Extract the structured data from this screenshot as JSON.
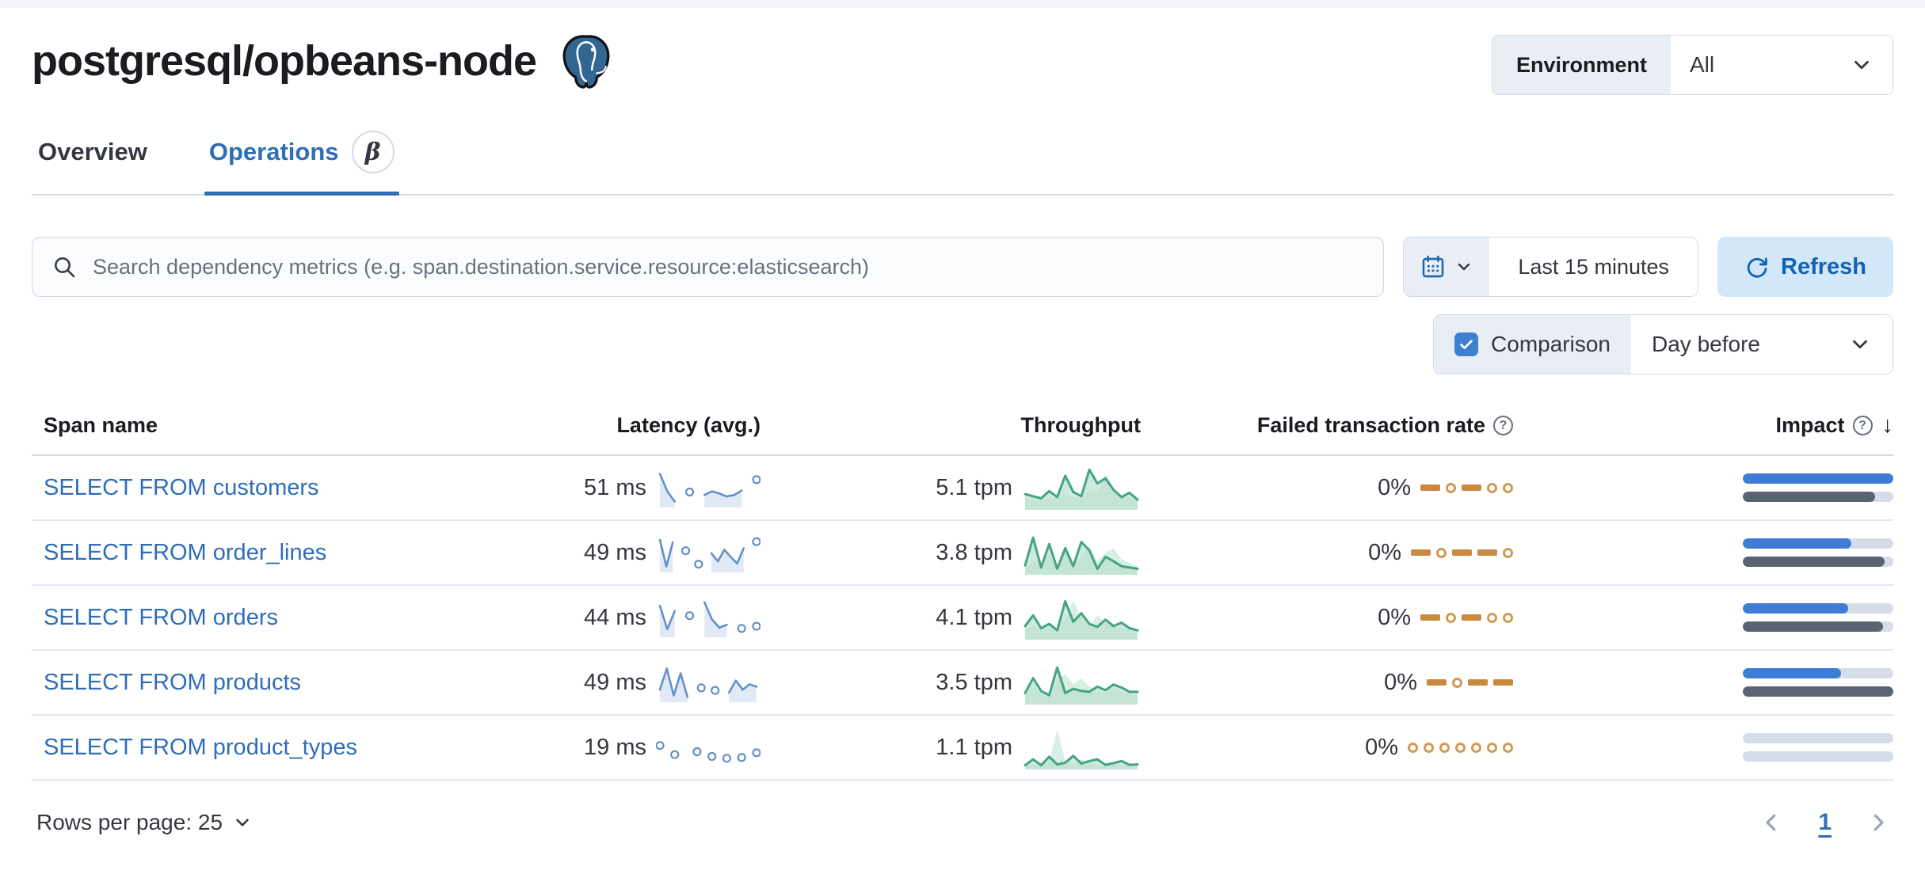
{
  "header": {
    "title": "postgresql/opbeans-node",
    "logo": "postgresql-elephant-icon",
    "environment": {
      "label": "Environment",
      "value": "All"
    }
  },
  "tabs": [
    {
      "label": "Overview",
      "active": false
    },
    {
      "label": "Operations",
      "active": true,
      "beta_badge": "β"
    }
  ],
  "toolbar": {
    "search_placeholder": "Search dependency metrics (e.g. span.destination.service.resource:elasticsearch)",
    "time_range": "Last 15 minutes",
    "refresh_label": "Refresh",
    "comparison_label": "Comparison",
    "comparison_value": "Day before",
    "comparison_checked": true
  },
  "table": {
    "columns": [
      {
        "label": "Span name"
      },
      {
        "label": "Latency (avg.)"
      },
      {
        "label": "Throughput"
      },
      {
        "label": "Failed transaction rate",
        "help_icon": true
      },
      {
        "label": "Impact",
        "help_icon": true,
        "sorted": "desc"
      }
    ],
    "rows": [
      {
        "span_name": "SELECT FROM customers",
        "latency": "51 ms",
        "throughput": "5.1 tpm",
        "failed_rate": "0%",
        "latency_spark": [
          88,
          40,
          12,
          null,
          38,
          null,
          30,
          40,
          34,
          26,
          30,
          42,
          null,
          72
        ],
        "throughput_spark": {
          "current": [
            35,
            30,
            25,
            42,
            28,
            78,
            40,
            30,
            92,
            60,
            72,
            45,
            28,
            38,
            22
          ],
          "previous": [
            25,
            22,
            20,
            30,
            24,
            35,
            28,
            25,
            45,
            38,
            82,
            50,
            30,
            26,
            20
          ]
        },
        "failed_pattern": [
          "dash",
          "dot",
          "dash",
          "dot",
          "dot"
        ],
        "impact": {
          "current": 100,
          "previous": 88
        }
      },
      {
        "span_name": "SELECT FROM order_lines",
        "latency": "49 ms",
        "throughput": "3.8 tpm",
        "failed_rate": "0%",
        "latency_spark": [
          85,
          12,
          78,
          null,
          55,
          null,
          18,
          null,
          48,
          26,
          58,
          38,
          20,
          62,
          null,
          80
        ],
        "throughput_spark": {
          "current": [
            20,
            85,
            15,
            70,
            12,
            60,
            18,
            75,
            55,
            12,
            40,
            30,
            18,
            15,
            12
          ],
          "previous": [
            15,
            30,
            20,
            45,
            18,
            70,
            25,
            40,
            65,
            30,
            50,
            60,
            35,
            25,
            18
          ]
        },
        "failed_pattern": [
          "dash",
          "dot",
          "dash",
          "dash",
          "dot"
        ],
        "impact": {
          "current": 72,
          "previous": 94
        }
      },
      {
        "span_name": "SELECT FROM orders",
        "latency": "44 ms",
        "throughput": "4.1 tpm",
        "failed_rate": "0%",
        "latency_spark": [
          82,
          18,
          68,
          null,
          55,
          null,
          92,
          45,
          22,
          30,
          null,
          20,
          null,
          26
        ],
        "throughput_spark": {
          "current": [
            30,
            55,
            25,
            35,
            20,
            88,
            40,
            60,
            35,
            28,
            45,
            30,
            38,
            25,
            20
          ],
          "previous": [
            20,
            30,
            22,
            28,
            18,
            45,
            90,
            50,
            30,
            55,
            38,
            28,
            24,
            20,
            16
          ]
        },
        "failed_pattern": [
          "dash",
          "dot",
          "dash",
          "dot",
          "dot"
        ],
        "impact": {
          "current": 70,
          "previous": 93
        }
      },
      {
        "span_name": "SELECT FROM products",
        "latency": "49 ms",
        "throughput": "3.5 tpm",
        "failed_rate": "0%",
        "latency_spark": [
          30,
          88,
          14,
          75,
          10,
          null,
          35,
          null,
          28,
          null,
          22,
          55,
          30,
          45,
          38
        ],
        "throughput_spark": {
          "current": [
            25,
            60,
            30,
            20,
            85,
            25,
            35,
            30,
            28,
            40,
            32,
            45,
            38,
            28,
            28
          ],
          "previous": [
            18,
            40,
            25,
            30,
            55,
            70,
            45,
            60,
            40,
            30,
            25,
            35,
            28,
            22,
            18
          ]
        },
        "failed_pattern": [
          "dash",
          "dot",
          "dash",
          "dash"
        ],
        "impact": {
          "current": 65,
          "previous": 100
        }
      },
      {
        "span_name": "SELECT FROM product_types",
        "latency": "19 ms",
        "throughput": "1.1 tpm",
        "failed_rate": "0%",
        "latency_spark": [
          55,
          null,
          30,
          null,
          null,
          38,
          null,
          25,
          null,
          20,
          null,
          22,
          null,
          35
        ],
        "throughput_spark": {
          "current": [
            8,
            22,
            8,
            28,
            10,
            14,
            30,
            12,
            18,
            22,
            9,
            13,
            18,
            9,
            10
          ],
          "previous": [
            5,
            10,
            8,
            14,
            92,
            18,
            10,
            22,
            14,
            9,
            7,
            11,
            9,
            7,
            5
          ]
        },
        "failed_pattern": [
          "dot",
          "dot",
          "dot",
          "dot",
          "dot",
          "dot",
          "dot"
        ],
        "impact": {
          "current": 0,
          "previous": 0
        }
      }
    ]
  },
  "footer": {
    "rows_per_page_label": "Rows per page: 25",
    "current_page": "1"
  },
  "colors": {
    "link_blue": "#2f6db8",
    "impact_current_blue": "#3e7cd6",
    "impact_previous_gray": "#5b6271",
    "impact_track": "#d6dce8",
    "latency_line_blue": "#6490c8",
    "latency_area_blue": "#d9e4f4",
    "throughput_line_green": "#45a483",
    "throughput_area_green": "#bde2d1",
    "throughput_prev_area_green": "#d8efe3",
    "failed_orange": "#c9893f",
    "refresh_bg": "#d2e7f9",
    "refresh_text": "#1262b3",
    "checkbox_blue": "#3d7fd1",
    "postgres_blue": "#336791"
  }
}
